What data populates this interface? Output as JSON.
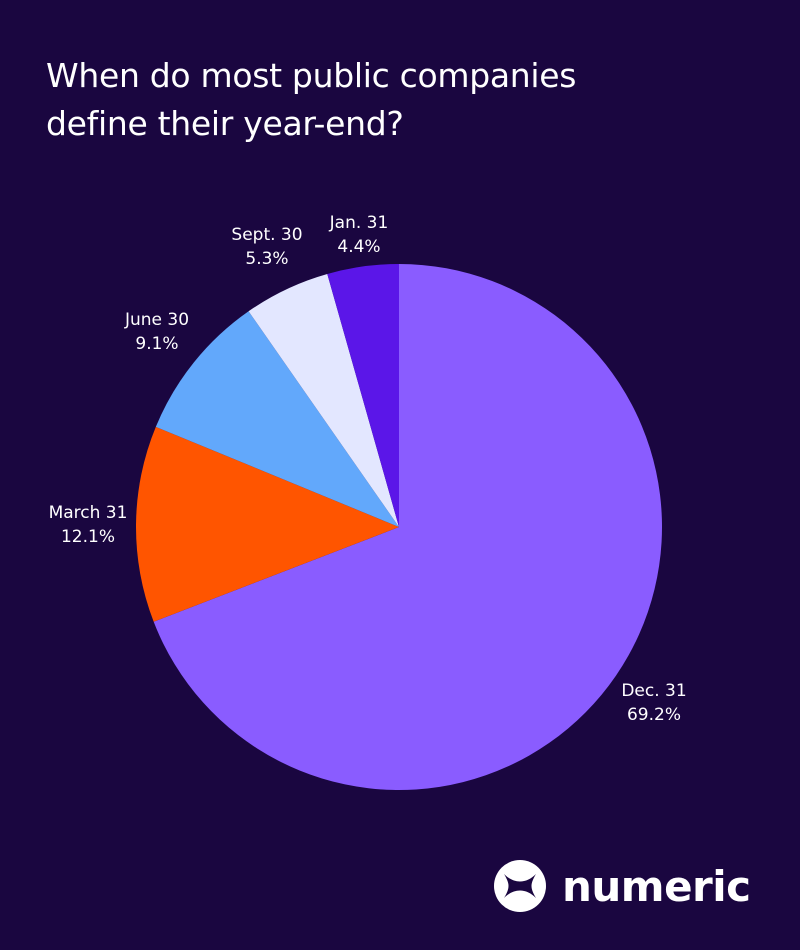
{
  "title_lines": [
    "When do most public companies",
    "define their year-end?"
  ],
  "brand": {
    "name": "numeric",
    "logo_icon": "numeric-logo-icon"
  },
  "colors": {
    "background": "#1a0640",
    "label_text": "#ffffff"
  },
  "chart_data": {
    "type": "pie",
    "title": "When do most public companies define their year-end?",
    "start_angle_deg": 0,
    "direction": "clockwise",
    "slices": [
      {
        "label": "Dec. 31",
        "value": 69.2,
        "value_label": "69.2%",
        "color": "#8a5cff"
      },
      {
        "label": "March 31",
        "value": 12.1,
        "value_label": "12.1%",
        "color": "#ff5500"
      },
      {
        "label": "June 30",
        "value": 9.1,
        "value_label": "9.1%",
        "color": "#62a8fb"
      },
      {
        "label": "Sept. 30",
        "value": 5.3,
        "value_label": "5.3%",
        "color": "#e3e7ff"
      },
      {
        "label": "Jan. 31",
        "value": 4.4,
        "value_label": "4.4%",
        "color": "#5b16e8"
      }
    ]
  }
}
